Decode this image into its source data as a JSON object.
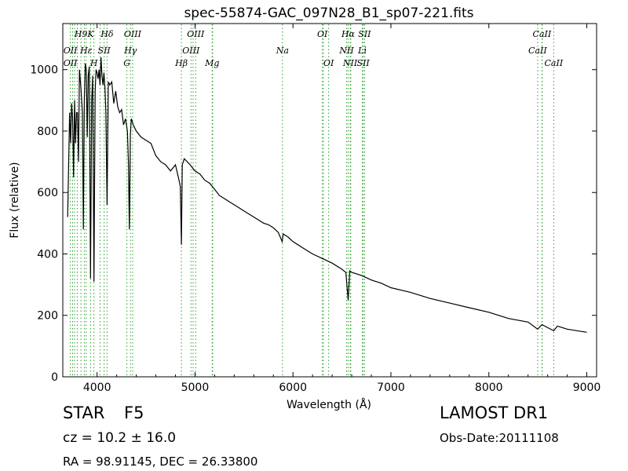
{
  "chart_data": {
    "type": "line",
    "title": "spec-55874-GAC_097N28_B1_sp07-221.fits",
    "xlabel": "Wavelength (Å)",
    "ylabel": "Flux (relative)",
    "xlim": [
      3650,
      9100
    ],
    "ylim": [
      0,
      1150
    ],
    "xticks": [
      4000,
      5000,
      6000,
      7000,
      8000,
      9000
    ],
    "yticks": [
      0,
      200,
      400,
      600,
      800,
      1000
    ],
    "grid": false,
    "series": [
      {
        "x": [
          3700,
          3710,
          3720,
          3730,
          3740,
          3750,
          3760,
          3770,
          3780,
          3790,
          3800,
          3810,
          3820,
          3835,
          3850,
          3860,
          3870,
          3880,
          3890,
          3900,
          3910,
          3920,
          3933,
          3945,
          3955,
          3968,
          3980,
          3990,
          4000,
          4010,
          4020,
          4030,
          4040,
          4050,
          4060,
          4070,
          4080,
          4090,
          4102,
          4115,
          4130,
          4150,
          4170,
          4190,
          4210,
          4230,
          4250,
          4270,
          4290,
          4310,
          4320,
          4330,
          4340,
          4350,
          4370,
          4400,
          4450,
          4500,
          4550,
          4600,
          4650,
          4700,
          4750,
          4800,
          4830,
          4850,
          4861,
          4870,
          4890,
          4920,
          4950,
          5000,
          5050,
          5100,
          5150,
          5200,
          5250,
          5300,
          5350,
          5400,
          5450,
          5500,
          5550,
          5600,
          5650,
          5700,
          5750,
          5800,
          5850,
          5890,
          5900,
          5950,
          6000,
          6100,
          6200,
          6300,
          6400,
          6500,
          6540,
          6563,
          6580,
          6600,
          6700,
          6800,
          6900,
          7000,
          7200,
          7400,
          7600,
          7800,
          8000,
          8200,
          8400,
          8498,
          8542,
          8600,
          8662,
          8700,
          8800,
          8900,
          9000
        ],
        "values": [
          520,
          700,
          860,
          760,
          890,
          840,
          650,
          900,
          760,
          860,
          860,
          700,
          1000,
          940,
          860,
          480,
          900,
          1020,
          1000,
          780,
          980,
          1010,
          320,
          900,
          980,
          310,
          930,
          1000,
          990,
          970,
          1000,
          950,
          1040,
          980,
          950,
          990,
          940,
          860,
          560,
          960,
          950,
          960,
          890,
          930,
          880,
          860,
          870,
          820,
          840,
          800,
          700,
          480,
          790,
          840,
          820,
          800,
          780,
          770,
          760,
          720,
          700,
          690,
          670,
          690,
          650,
          620,
          430,
          690,
          710,
          700,
          690,
          670,
          660,
          640,
          630,
          610,
          590,
          580,
          570,
          560,
          550,
          540,
          530,
          520,
          510,
          500,
          495,
          485,
          470,
          440,
          465,
          455,
          440,
          420,
          400,
          385,
          370,
          350,
          340,
          250,
          345,
          340,
          330,
          315,
          305,
          290,
          275,
          255,
          240,
          225,
          210,
          190,
          178,
          155,
          170,
          160,
          150,
          165,
          155,
          150,
          145
        ]
      }
    ],
    "lines": {
      "top": [
        {
          "label": "H9",
          "x": 3835
        },
        {
          "label": "K",
          "x": 3934
        },
        {
          "label": "Hδ",
          "x": 4102
        },
        {
          "label": "OIII",
          "x": 4363
        },
        {
          "label": "OIII",
          "x": 5007
        },
        {
          "label": "OI",
          "x": 6300
        },
        {
          "label": "Hα",
          "x": 6563
        },
        {
          "label": "SII",
          "x": 6731
        },
        {
          "label": "CaII",
          "x": 8542
        }
      ],
      "middle": [
        {
          "label": "OII",
          "x": 3727
        },
        {
          "label": "Hε",
          "x": 3889
        },
        {
          "label": "SII",
          "x": 4072
        },
        {
          "label": "Hγ",
          "x": 4341
        },
        {
          "label": "OIII",
          "x": 4959
        },
        {
          "label": "Na",
          "x": 5893
        },
        {
          "label": "NII",
          "x": 6548
        },
        {
          "label": "Lì",
          "x": 6708
        },
        {
          "label": "CaII",
          "x": 8498
        }
      ],
      "bottom": [
        {
          "label": "OII",
          "x": 3727
        },
        {
          "label": "H",
          "x": 3968
        },
        {
          "label": "G",
          "x": 4304
        },
        {
          "label": "Hβ",
          "x": 4861
        },
        {
          "label": "Mg",
          "x": 5175
        },
        {
          "label": "OI",
          "x": 6364
        },
        {
          "label": "NII",
          "x": 6584
        },
        {
          "label": "SII",
          "x": 6717
        },
        {
          "label": "CaII",
          "x": 8662
        }
      ],
      "unlabeled": [
        3750,
        3770,
        3798,
        3870,
        3933,
        4030,
        4340,
        4360,
        4959,
        4980,
        5180,
        6310,
        6365,
        6550,
        6590,
        6720,
        6725,
        8498,
        8545,
        8662
      ]
    }
  },
  "info": {
    "class": "STAR",
    "subclass": "F5",
    "cz": "cz = 10.2  ± 16.0",
    "radec": "RA = 98.91145, DEC = 26.33800",
    "survey": "LAMOST DR1",
    "obs_date": "Obs-Date:20111108"
  },
  "colors": {
    "spectrum": "#000000",
    "lines": "#2ca02c",
    "axes": "#000000"
  }
}
